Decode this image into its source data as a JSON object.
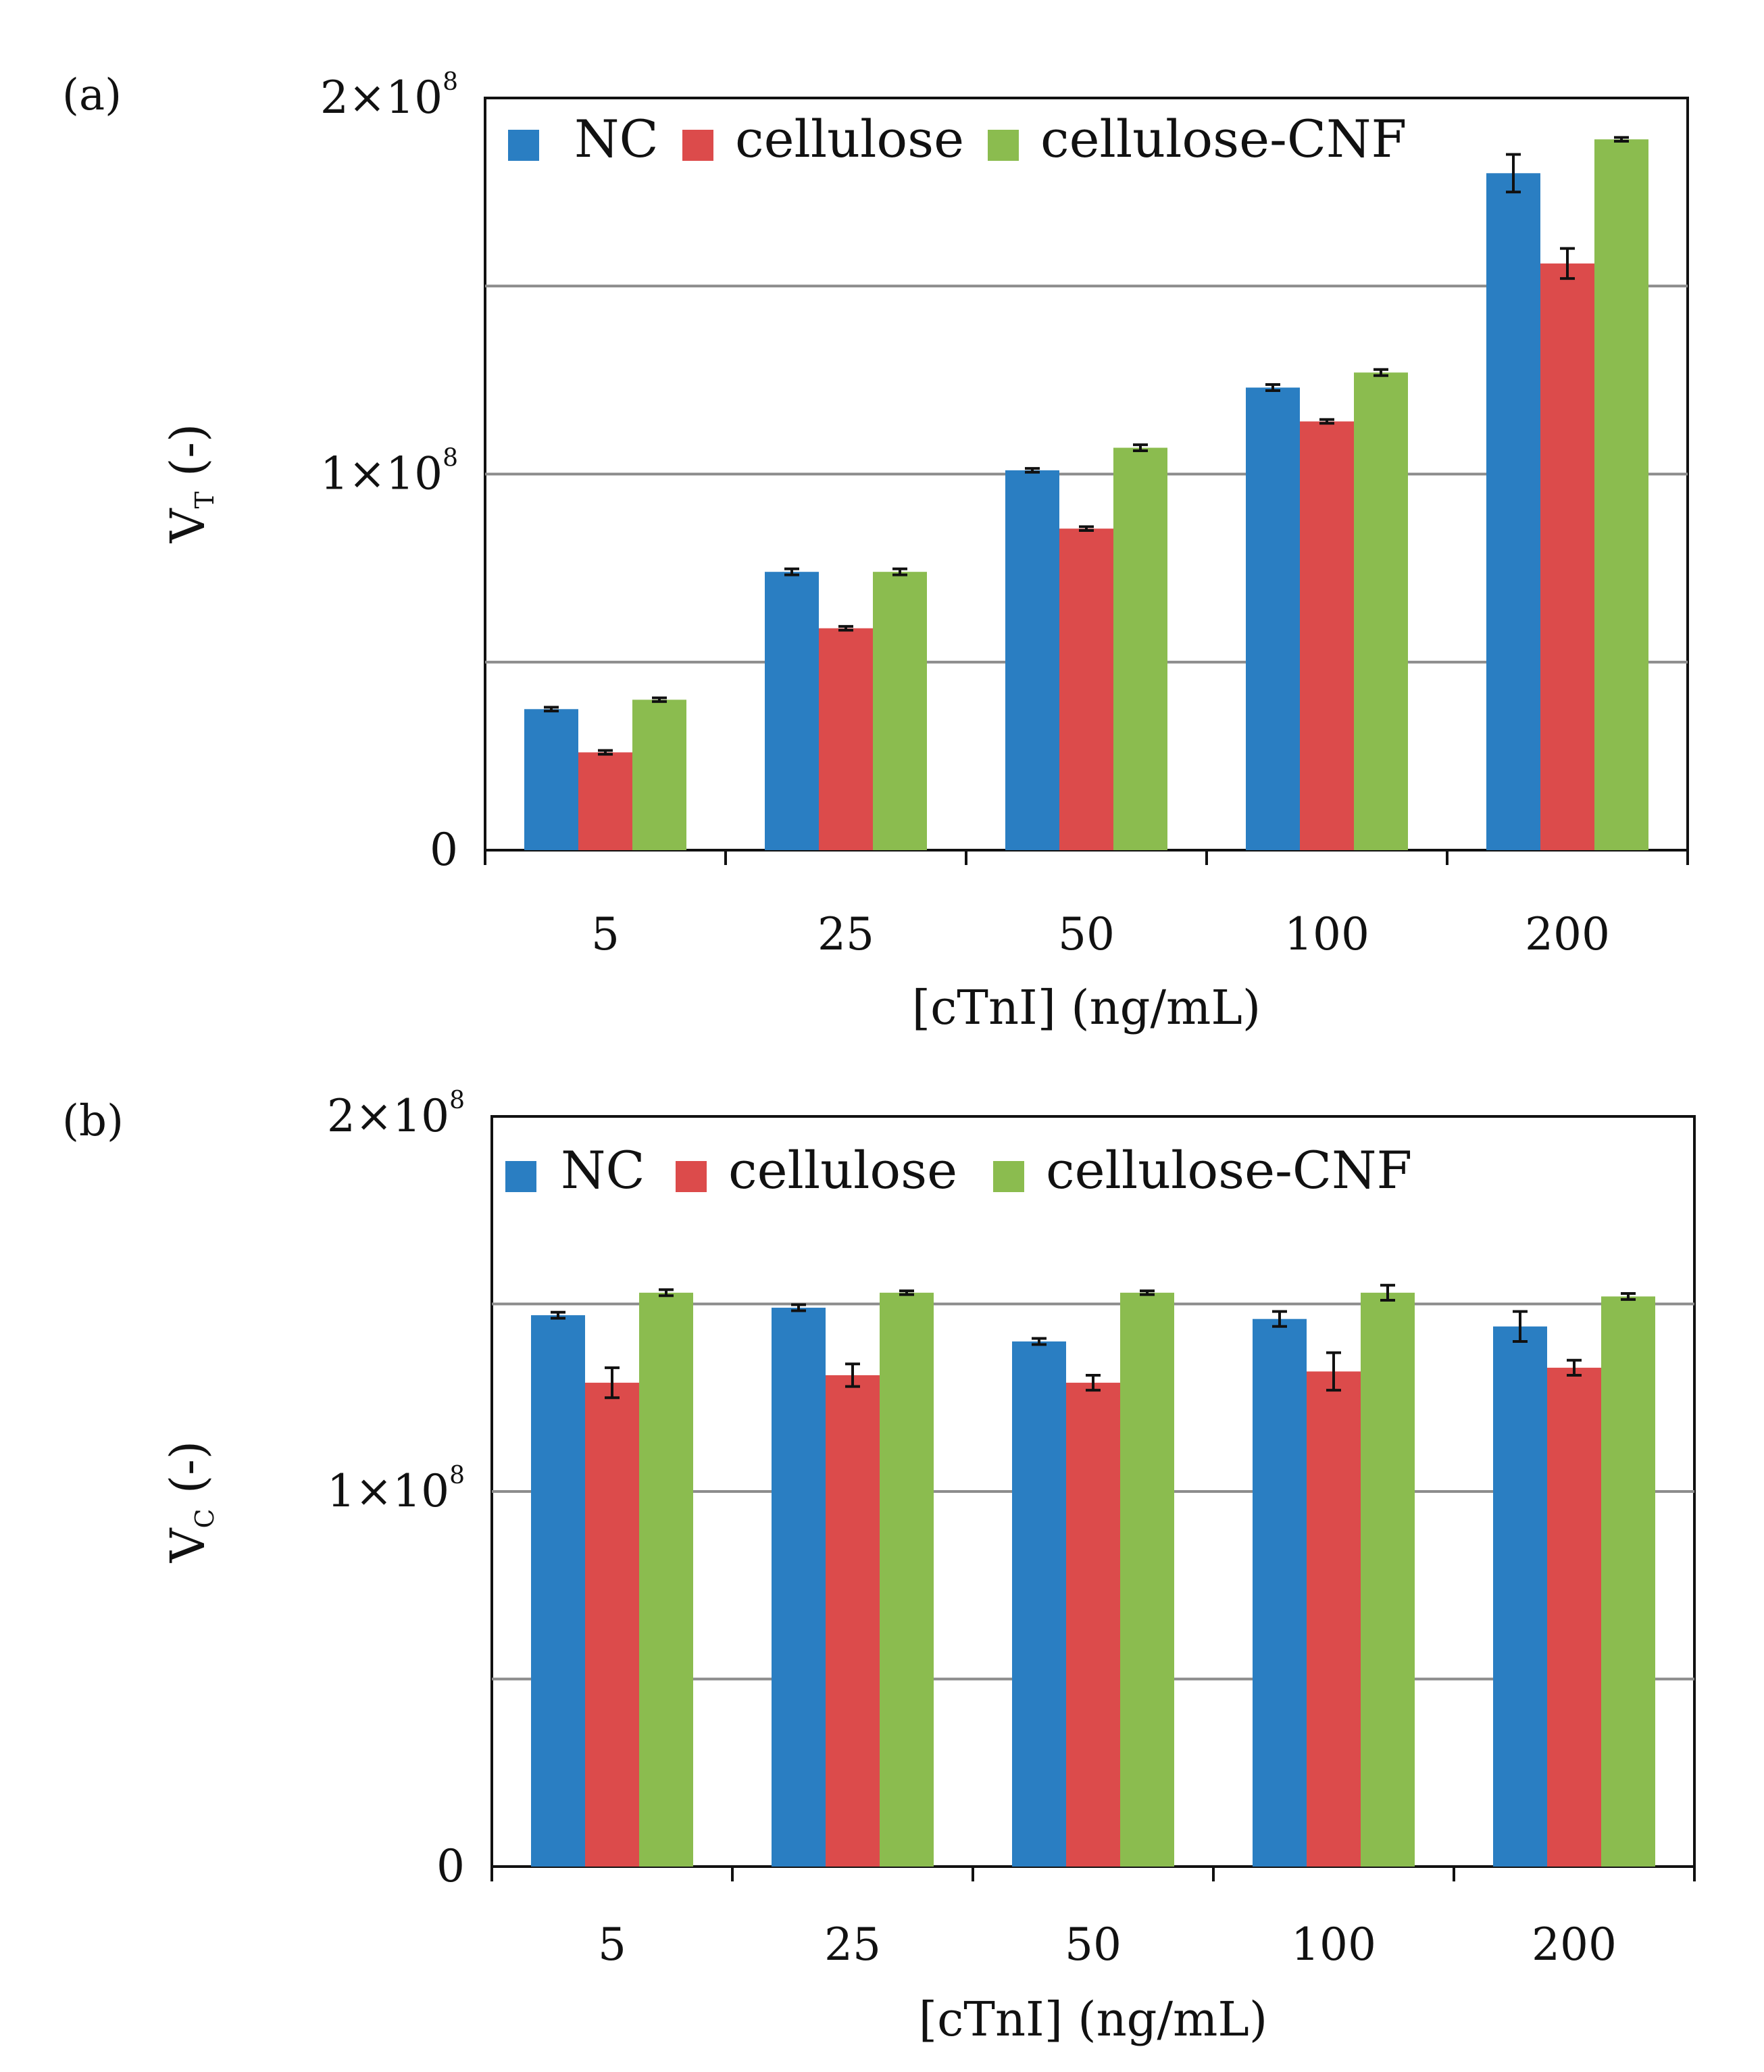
{
  "colors": {
    "NC": "#2a7ec2",
    "cellulose": "#dc4b4b",
    "cellulose-CNF": "#8bbc4f",
    "grid": "#8c8c8c",
    "axis": "#111111",
    "error_bar": "#111111"
  },
  "chart_data": [
    {
      "panel": "(a)",
      "type": "bar",
      "title": "",
      "xlabel": "[cTnI] (ng/mL)",
      "ylabel": {
        "base": "V",
        "sub": "T",
        "suffix": " (-)"
      },
      "ylim": [
        0,
        200000000.0
      ],
      "yticks": [
        {
          "value": 0,
          "label": "0",
          "exp": ""
        },
        {
          "value": 100000000.0,
          "label": "1×10",
          "exp": "8"
        },
        {
          "value": 200000000.0,
          "label": "2×10",
          "exp": "8"
        }
      ],
      "gridlines": [
        50000000.0,
        100000000.0,
        150000000.0
      ],
      "legend_position": "top-left",
      "categories": [
        "5",
        "25",
        "50",
        "100",
        "200"
      ],
      "series": [
        {
          "name": "NC",
          "values": [
            37500000.0,
            74000000.0,
            101000000.0,
            123000000.0,
            180000000.0
          ],
          "errors": [
            500000.0,
            800000.0,
            500000.0,
            800000.0,
            5000000.0
          ]
        },
        {
          "name": "cellulose",
          "values": [
            26000000.0,
            59000000.0,
            85500000.0,
            114000000.0,
            156000000.0
          ],
          "errors": [
            500000.0,
            500000.0,
            500000.0,
            500000.0,
            4000000.0
          ]
        },
        {
          "name": "cellulose-CNF",
          "values": [
            40000000.0,
            74000000.0,
            107000000.0,
            127000000.0,
            189000000.0
          ],
          "errors": [
            500000.0,
            800000.0,
            800000.0,
            800000.0,
            500000.0
          ]
        }
      ]
    },
    {
      "panel": "(b)",
      "type": "bar",
      "title": "",
      "xlabel": "[cTnI] (ng/mL)",
      "ylabel": {
        "base": "V",
        "sub": "C",
        "suffix": " (-)"
      },
      "ylim": [
        0,
        200000000.0
      ],
      "yticks": [
        {
          "value": 0,
          "label": "0",
          "exp": ""
        },
        {
          "value": 100000000.0,
          "label": "1×10",
          "exp": "8"
        },
        {
          "value": 200000000.0,
          "label": "2×10",
          "exp": "8"
        }
      ],
      "gridlines": [
        50000000.0,
        100000000.0,
        150000000.0
      ],
      "legend_position": "top-left",
      "categories": [
        "5",
        "25",
        "50",
        "100",
        "200"
      ],
      "series": [
        {
          "name": "NC",
          "values": [
            147000000.0,
            149000000.0,
            140000000.0,
            146000000.0,
            144000000.0
          ],
          "errors": [
            800000.0,
            800000.0,
            800000.0,
            2000000.0,
            4000000.0
          ]
        },
        {
          "name": "cellulose",
          "values": [
            129000000.0,
            131000000.0,
            129000000.0,
            132000000.0,
            133000000.0
          ],
          "errors": [
            4000000.0,
            3000000.0,
            2000000.0,
            5000000.0,
            2000000.0
          ]
        },
        {
          "name": "cellulose-CNF",
          "values": [
            153000000.0,
            153000000.0,
            153000000.0,
            153000000.0,
            152000000.0
          ],
          "errors": [
            800000.0,
            500000.0,
            500000.0,
            2000000.0,
            800000.0
          ]
        }
      ]
    }
  ]
}
